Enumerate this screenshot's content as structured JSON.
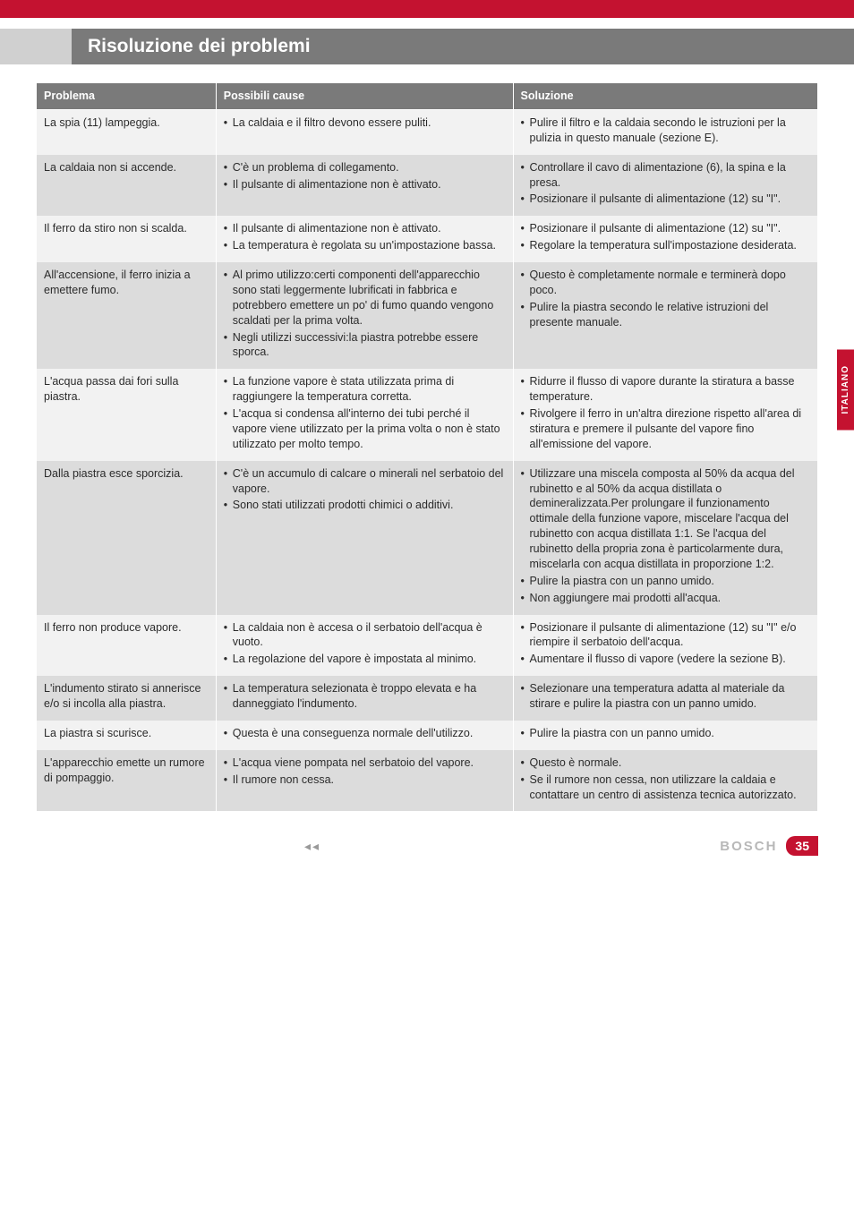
{
  "colors": {
    "red": "#c41230",
    "header_gray": "#7a7a7a",
    "light_row": "#f2f2f2",
    "dark_row": "#dcdcdc",
    "text": "#2b2b2b",
    "footer_gray": "#b8b8b8"
  },
  "heading": "Risoluzione dei problemi",
  "side_tab": "ITALIANO",
  "table": {
    "headers": [
      "Problema",
      "Possibili cause",
      "Soluzione"
    ],
    "rows": [
      {
        "shade": "light",
        "problem": "La spia (11) lampeggia.",
        "causes": [
          "La caldaia e il filtro devono essere puliti."
        ],
        "solutions": [
          "Pulire il filtro e la caldaia secondo le istruzioni per la pulizia in questo manuale (sezione E)."
        ]
      },
      {
        "shade": "dark",
        "problem": "La caldaia non si accende.",
        "causes": [
          "C'è un problema di collegamento.",
          "Il pulsante di alimentazione non è attivato."
        ],
        "solutions": [
          "Controllare il cavo di alimentazione (6), la spina e la presa.",
          "Posizionare il pulsante di alimentazione (12) su \"I\"."
        ]
      },
      {
        "shade": "light",
        "problem": "Il ferro da stiro non si scalda.",
        "causes": [
          "Il pulsante di alimentazione non è attivato.",
          "La temperatura è regolata su un'impostazione bassa."
        ],
        "solutions": [
          "Posizionare il pulsante di alimentazione (12) su \"I\".",
          "Regolare la temperatura sull'impostazione desiderata."
        ]
      },
      {
        "shade": "dark",
        "problem": "All'accensione, il ferro inizia a emettere fumo.",
        "causes": [
          "Al primo utilizzo:certi componenti dell'apparecchio sono stati leggermente lubrificati in fabbrica e potrebbero emettere un po' di fumo quando vengono scaldati per la prima volta.",
          "Negli utilizzi successivi:la piastra potrebbe essere sporca."
        ],
        "solutions": [
          "Questo è completamente normale e terminerà dopo poco.",
          "Pulire la piastra secondo le relative istruzioni del presente manuale."
        ]
      },
      {
        "shade": "light",
        "problem": "L'acqua passa dai fori sulla piastra.",
        "causes": [
          "La funzione vapore è stata utilizzata prima di raggiungere la temperatura corretta.",
          "L'acqua si condensa all'interno dei tubi perché il vapore viene utilizzato per la prima volta o non è stato utilizzato per molto tempo."
        ],
        "solutions": [
          "Ridurre il flusso di vapore durante la stiratura a basse temperature.",
          "Rivolgere il ferro in un'altra direzione rispetto all'area di stiratura e premere il pulsante del vapore fino all'emissione del vapore."
        ]
      },
      {
        "shade": "dark",
        "problem": "Dalla piastra esce sporcizia.",
        "causes": [
          "C'è un accumulo di calcare o minerali nel serbatoio del vapore.",
          "Sono stati utilizzati prodotti chimici o additivi."
        ],
        "solutions": [
          "Utilizzare una miscela composta al 50% da acqua del rubinetto e al 50% da acqua distillata o demineralizzata.Per prolungare il funzionamento ottimale della funzione vapore, miscelare l'acqua del rubinetto con acqua distillata 1:1. Se l'acqua del rubinetto della propria zona è particolarmente dura, miscelarla con acqua distillata in proporzione 1:2.",
          "Pulire la piastra con un panno umido.",
          "Non aggiungere mai prodotti all'acqua."
        ]
      },
      {
        "shade": "light",
        "problem": "Il ferro non produce vapore.",
        "causes": [
          "La caldaia non è accesa o il serbatoio dell'acqua è vuoto.",
          "La regolazione del vapore è impostata al minimo."
        ],
        "solutions": [
          "Posizionare il pulsante di alimentazione (12) su \"I\" e/o riempire il serbatoio dell'acqua.",
          "Aumentare il flusso di vapore (vedere la sezione B)."
        ]
      },
      {
        "shade": "dark",
        "problem": "L'indumento stirato si annerisce e/o si incolla alla piastra.",
        "causes": [
          "La temperatura selezionata è troppo elevata e ha danneggiato l'indumento."
        ],
        "solutions": [
          "Selezionare una temperatura adatta al materiale da stirare e pulire la piastra con un panno umido."
        ]
      },
      {
        "shade": "light",
        "problem": "La piastra si scurisce.",
        "causes": [
          "Questa è una conseguenza normale dell'utilizzo."
        ],
        "solutions": [
          "Pulire la piastra con un panno umido."
        ]
      },
      {
        "shade": "dark",
        "problem": "L'apparecchio emette un rumore di pompaggio.",
        "causes": [
          "L'acqua viene pompata nel serbatoio del vapore.",
          "Il rumore non cessa."
        ],
        "solutions": [
          "Questo è normale.",
          "Se il rumore non cessa, non utilizzare la caldaia e contattare un centro di assistenza tecnica autorizzato."
        ]
      }
    ]
  },
  "footer": {
    "arrows": "◂◂",
    "brand": "BOSCH",
    "page": "35"
  }
}
